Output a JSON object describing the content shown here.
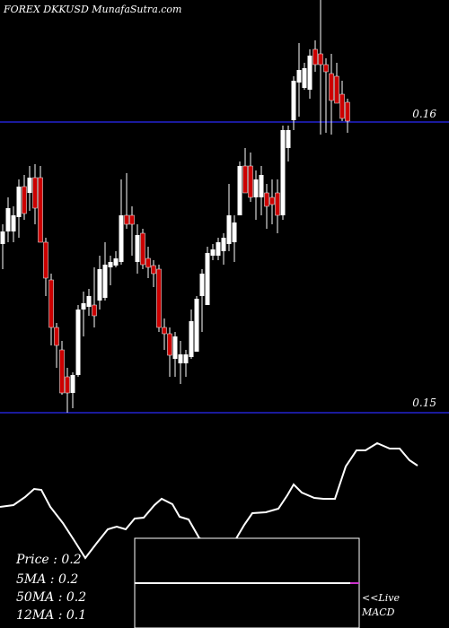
{
  "header": {
    "title": "FOREX  DKKUSD MunafaSutra.com"
  },
  "chart_data": {
    "type": "candlestick",
    "title": "FOREX  DKKUSD MunafaSutra.com",
    "y_ticks": [
      "0.16",
      "0.15"
    ],
    "candle_count": 79,
    "colors": {
      "up": "#ffffff",
      "down": "#cc0000",
      "hline": "#1a1a9c",
      "background": "#000000"
    },
    "indicator": {
      "name": "MACD",
      "label": "<<Live MACD",
      "line_color": "#ffffff",
      "box": true
    }
  },
  "stats": {
    "price": "Price   : 0.2",
    "ma5": "5MA : 0.2",
    "ma50": "50MA : 0.2",
    "ma12": "12MA : 0.1"
  },
  "live_label_1": "<<Live",
  "live_label_2": "MACD"
}
